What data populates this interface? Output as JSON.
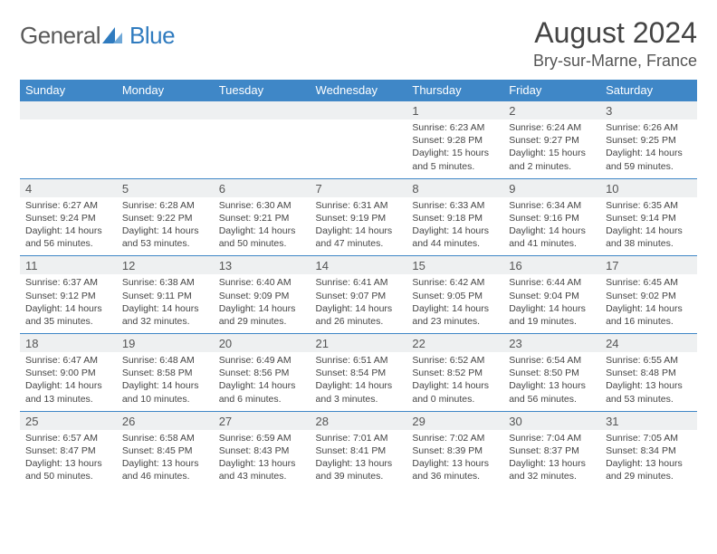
{
  "brand": {
    "part1": "General",
    "part2": "Blue"
  },
  "title": "August 2024",
  "location": "Bry-sur-Marne, France",
  "colors": {
    "accent": "#3f87c7",
    "numRowBg": "#eef0f1",
    "text": "#444"
  },
  "dayHeaders": [
    "Sunday",
    "Monday",
    "Tuesday",
    "Wednesday",
    "Thursday",
    "Friday",
    "Saturday"
  ],
  "weeks": [
    [
      {
        "n": "",
        "sr": "",
        "ss": "",
        "dl": ""
      },
      {
        "n": "",
        "sr": "",
        "ss": "",
        "dl": ""
      },
      {
        "n": "",
        "sr": "",
        "ss": "",
        "dl": ""
      },
      {
        "n": "",
        "sr": "",
        "ss": "",
        "dl": ""
      },
      {
        "n": "1",
        "sr": "Sunrise: 6:23 AM",
        "ss": "Sunset: 9:28 PM",
        "dl": "Daylight: 15 hours and 5 minutes."
      },
      {
        "n": "2",
        "sr": "Sunrise: 6:24 AM",
        "ss": "Sunset: 9:27 PM",
        "dl": "Daylight: 15 hours and 2 minutes."
      },
      {
        "n": "3",
        "sr": "Sunrise: 6:26 AM",
        "ss": "Sunset: 9:25 PM",
        "dl": "Daylight: 14 hours and 59 minutes."
      }
    ],
    [
      {
        "n": "4",
        "sr": "Sunrise: 6:27 AM",
        "ss": "Sunset: 9:24 PM",
        "dl": "Daylight: 14 hours and 56 minutes."
      },
      {
        "n": "5",
        "sr": "Sunrise: 6:28 AM",
        "ss": "Sunset: 9:22 PM",
        "dl": "Daylight: 14 hours and 53 minutes."
      },
      {
        "n": "6",
        "sr": "Sunrise: 6:30 AM",
        "ss": "Sunset: 9:21 PM",
        "dl": "Daylight: 14 hours and 50 minutes."
      },
      {
        "n": "7",
        "sr": "Sunrise: 6:31 AM",
        "ss": "Sunset: 9:19 PM",
        "dl": "Daylight: 14 hours and 47 minutes."
      },
      {
        "n": "8",
        "sr": "Sunrise: 6:33 AM",
        "ss": "Sunset: 9:18 PM",
        "dl": "Daylight: 14 hours and 44 minutes."
      },
      {
        "n": "9",
        "sr": "Sunrise: 6:34 AM",
        "ss": "Sunset: 9:16 PM",
        "dl": "Daylight: 14 hours and 41 minutes."
      },
      {
        "n": "10",
        "sr": "Sunrise: 6:35 AM",
        "ss": "Sunset: 9:14 PM",
        "dl": "Daylight: 14 hours and 38 minutes."
      }
    ],
    [
      {
        "n": "11",
        "sr": "Sunrise: 6:37 AM",
        "ss": "Sunset: 9:12 PM",
        "dl": "Daylight: 14 hours and 35 minutes."
      },
      {
        "n": "12",
        "sr": "Sunrise: 6:38 AM",
        "ss": "Sunset: 9:11 PM",
        "dl": "Daylight: 14 hours and 32 minutes."
      },
      {
        "n": "13",
        "sr": "Sunrise: 6:40 AM",
        "ss": "Sunset: 9:09 PM",
        "dl": "Daylight: 14 hours and 29 minutes."
      },
      {
        "n": "14",
        "sr": "Sunrise: 6:41 AM",
        "ss": "Sunset: 9:07 PM",
        "dl": "Daylight: 14 hours and 26 minutes."
      },
      {
        "n": "15",
        "sr": "Sunrise: 6:42 AM",
        "ss": "Sunset: 9:05 PM",
        "dl": "Daylight: 14 hours and 23 minutes."
      },
      {
        "n": "16",
        "sr": "Sunrise: 6:44 AM",
        "ss": "Sunset: 9:04 PM",
        "dl": "Daylight: 14 hours and 19 minutes."
      },
      {
        "n": "17",
        "sr": "Sunrise: 6:45 AM",
        "ss": "Sunset: 9:02 PM",
        "dl": "Daylight: 14 hours and 16 minutes."
      }
    ],
    [
      {
        "n": "18",
        "sr": "Sunrise: 6:47 AM",
        "ss": "Sunset: 9:00 PM",
        "dl": "Daylight: 14 hours and 13 minutes."
      },
      {
        "n": "19",
        "sr": "Sunrise: 6:48 AM",
        "ss": "Sunset: 8:58 PM",
        "dl": "Daylight: 14 hours and 10 minutes."
      },
      {
        "n": "20",
        "sr": "Sunrise: 6:49 AM",
        "ss": "Sunset: 8:56 PM",
        "dl": "Daylight: 14 hours and 6 minutes."
      },
      {
        "n": "21",
        "sr": "Sunrise: 6:51 AM",
        "ss": "Sunset: 8:54 PM",
        "dl": "Daylight: 14 hours and 3 minutes."
      },
      {
        "n": "22",
        "sr": "Sunrise: 6:52 AM",
        "ss": "Sunset: 8:52 PM",
        "dl": "Daylight: 14 hours and 0 minutes."
      },
      {
        "n": "23",
        "sr": "Sunrise: 6:54 AM",
        "ss": "Sunset: 8:50 PM",
        "dl": "Daylight: 13 hours and 56 minutes."
      },
      {
        "n": "24",
        "sr": "Sunrise: 6:55 AM",
        "ss": "Sunset: 8:48 PM",
        "dl": "Daylight: 13 hours and 53 minutes."
      }
    ],
    [
      {
        "n": "25",
        "sr": "Sunrise: 6:57 AM",
        "ss": "Sunset: 8:47 PM",
        "dl": "Daylight: 13 hours and 50 minutes."
      },
      {
        "n": "26",
        "sr": "Sunrise: 6:58 AM",
        "ss": "Sunset: 8:45 PM",
        "dl": "Daylight: 13 hours and 46 minutes."
      },
      {
        "n": "27",
        "sr": "Sunrise: 6:59 AM",
        "ss": "Sunset: 8:43 PM",
        "dl": "Daylight: 13 hours and 43 minutes."
      },
      {
        "n": "28",
        "sr": "Sunrise: 7:01 AM",
        "ss": "Sunset: 8:41 PM",
        "dl": "Daylight: 13 hours and 39 minutes."
      },
      {
        "n": "29",
        "sr": "Sunrise: 7:02 AM",
        "ss": "Sunset: 8:39 PM",
        "dl": "Daylight: 13 hours and 36 minutes."
      },
      {
        "n": "30",
        "sr": "Sunrise: 7:04 AM",
        "ss": "Sunset: 8:37 PM",
        "dl": "Daylight: 13 hours and 32 minutes."
      },
      {
        "n": "31",
        "sr": "Sunrise: 7:05 AM",
        "ss": "Sunset: 8:34 PM",
        "dl": "Daylight: 13 hours and 29 minutes."
      }
    ]
  ]
}
